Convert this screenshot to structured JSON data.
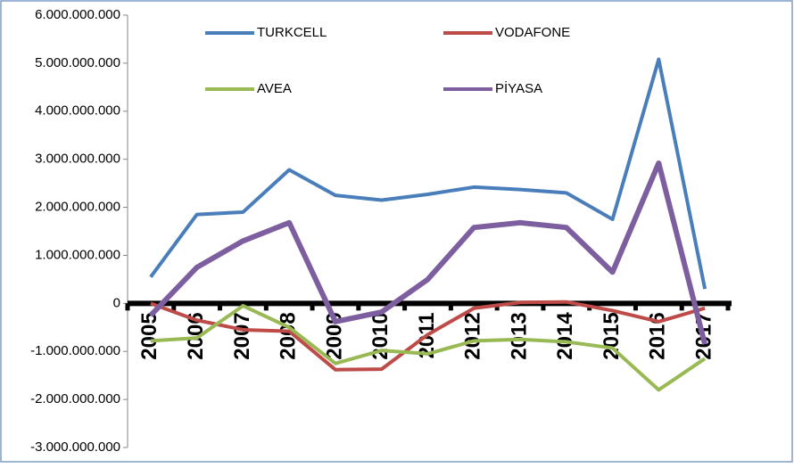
{
  "chart_data": {
    "type": "line",
    "categories": [
      "2005",
      "2006",
      "2007",
      "2008",
      "2009",
      "2010",
      "2011",
      "2012",
      "2013",
      "2014",
      "2015",
      "2016",
      "2017"
    ],
    "series": [
      {
        "name": "TURKCELL",
        "color": "#4a7ebb",
        "values": [
          550000000,
          1850000000,
          1900000000,
          2780000000,
          2250000000,
          2150000000,
          2270000000,
          2420000000,
          2370000000,
          2300000000,
          1750000000,
          5080000000,
          300000000
        ]
      },
      {
        "name": "VODAFONE",
        "color": "#be4b48",
        "values": [
          0,
          -350000000,
          -550000000,
          -580000000,
          -1380000000,
          -1370000000,
          -650000000,
          -100000000,
          20000000,
          30000000,
          -150000000,
          -380000000,
          -100000000
        ]
      },
      {
        "name": "AVEA",
        "color": "#98b954",
        "values": [
          -780000000,
          -720000000,
          -50000000,
          -500000000,
          -1250000000,
          -980000000,
          -1050000000,
          -780000000,
          -750000000,
          -800000000,
          -930000000,
          -1800000000,
          -1150000000
        ]
      },
      {
        "name": "PİYASA",
        "color": "#7d5fa0",
        "values": [
          -250000000,
          750000000,
          1300000000,
          1680000000,
          -380000000,
          -180000000,
          500000000,
          1580000000,
          1680000000,
          1580000000,
          650000000,
          2920000000,
          -850000000
        ]
      }
    ],
    "ylim": [
      -3000000000,
      6000000000
    ],
    "yticks": [
      {
        "value": -3000000000,
        "label": "-3.000.000.000"
      },
      {
        "value": -2000000000,
        "label": "-2.000.000.000"
      },
      {
        "value": -1000000000,
        "label": "-1.000.000.000"
      },
      0,
      {
        "value": 1000000000,
        "label": "1.000.000.000"
      },
      {
        "value": 2000000000,
        "label": "2.000.000.000"
      },
      {
        "value": 3000000000,
        "label": "3.000.000.000"
      },
      {
        "value": 4000000000,
        "label": "4.000.000.000"
      },
      {
        "value": 5000000000,
        "label": "5.000.000.000"
      },
      {
        "value": 6000000000,
        "label": "6.000.000.000"
      }
    ],
    "grid": false
  }
}
